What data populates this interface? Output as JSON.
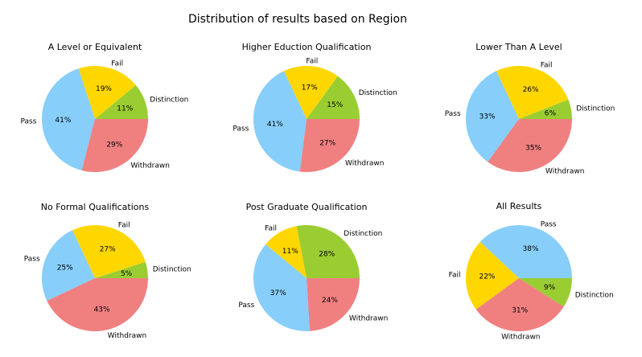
{
  "title": "Distribution of results based on Region",
  "colors": {
    "Distinction": "#9acd32",
    "Fail": "#ffd700",
    "Pass": "#87cefa",
    "Withdrawn": "#f08080"
  },
  "chart_data": [
    {
      "type": "pie",
      "title": "A Level or Equivalent",
      "labels": [
        "Distinction",
        "Fail",
        "Pass",
        "Withdrawn"
      ],
      "values": [
        11,
        19,
        41,
        29
      ],
      "start_angle": 0,
      "direction": "counterclockwise"
    },
    {
      "type": "pie",
      "title": "Higher Eduction Qualification",
      "labels": [
        "Distinction",
        "Fail",
        "Pass",
        "Withdrawn"
      ],
      "values": [
        15,
        17,
        41,
        27
      ],
      "start_angle": 0,
      "direction": "counterclockwise"
    },
    {
      "type": "pie",
      "title": "Lower Than A Level",
      "labels": [
        "Distinction",
        "Fail",
        "Pass",
        "Withdrawn"
      ],
      "values": [
        6,
        26,
        33,
        35
      ],
      "start_angle": 0,
      "direction": "counterclockwise"
    },
    {
      "type": "pie",
      "title": "No Formal Qualifications",
      "labels": [
        "Distinction",
        "Fail",
        "Pass",
        "Withdrawn"
      ],
      "values": [
        5,
        27,
        25,
        43
      ],
      "start_angle": 0,
      "direction": "counterclockwise"
    },
    {
      "type": "pie",
      "title": "Post Graduate Qualification",
      "labels": [
        "Distinction",
        "Fail",
        "Pass",
        "Withdrawn"
      ],
      "values": [
        28,
        11,
        37,
        24
      ],
      "start_angle": 0,
      "direction": "counterclockwise"
    },
    {
      "type": "pie",
      "title": "All Results",
      "labels": [
        "Distinction",
        "Withdrawn",
        "Fail",
        "Pass"
      ],
      "values": [
        9,
        31,
        22,
        38
      ],
      "start_angle": 0,
      "direction": "clockwise"
    }
  ]
}
